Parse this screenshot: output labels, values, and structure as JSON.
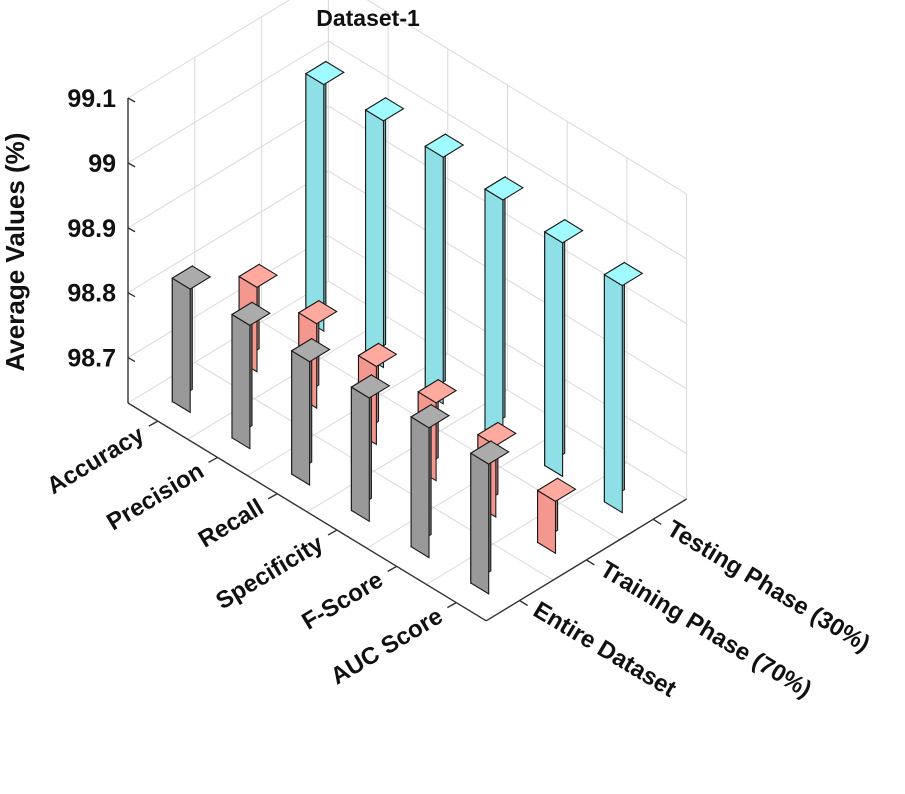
{
  "chart_data": {
    "type": "bar3d",
    "title": "Dataset-1",
    "ylabel": "Average Values (%)",
    "categories": [
      "Accuracy",
      "Precision",
      "Recall",
      "Specificity",
      "F-Score",
      "AUC Score"
    ],
    "ylim": [
      98.63,
      99.1
    ],
    "yticks": [
      "98.7",
      "98.8",
      "98.9",
      "99",
      "99.1"
    ],
    "ytick_values": [
      98.7,
      98.8,
      98.9,
      99.0,
      99.1
    ],
    "series": [
      {
        "name": "Entire Dataset",
        "color": "#999999",
        "values": [
          98.82,
          98.82,
          98.82,
          98.82,
          98.83,
          98.83
        ]
      },
      {
        "name": "Training Phase (70%)",
        "color": "#f4978e",
        "values": [
          98.76,
          98.76,
          98.75,
          98.75,
          98.74,
          98.71
        ]
      },
      {
        "name": "Testing Phase (30%)",
        "color": "#8ee0e6",
        "values": [
          99.01,
          99.01,
          99.01,
          99.0,
          98.99,
          98.98
        ]
      }
    ]
  }
}
